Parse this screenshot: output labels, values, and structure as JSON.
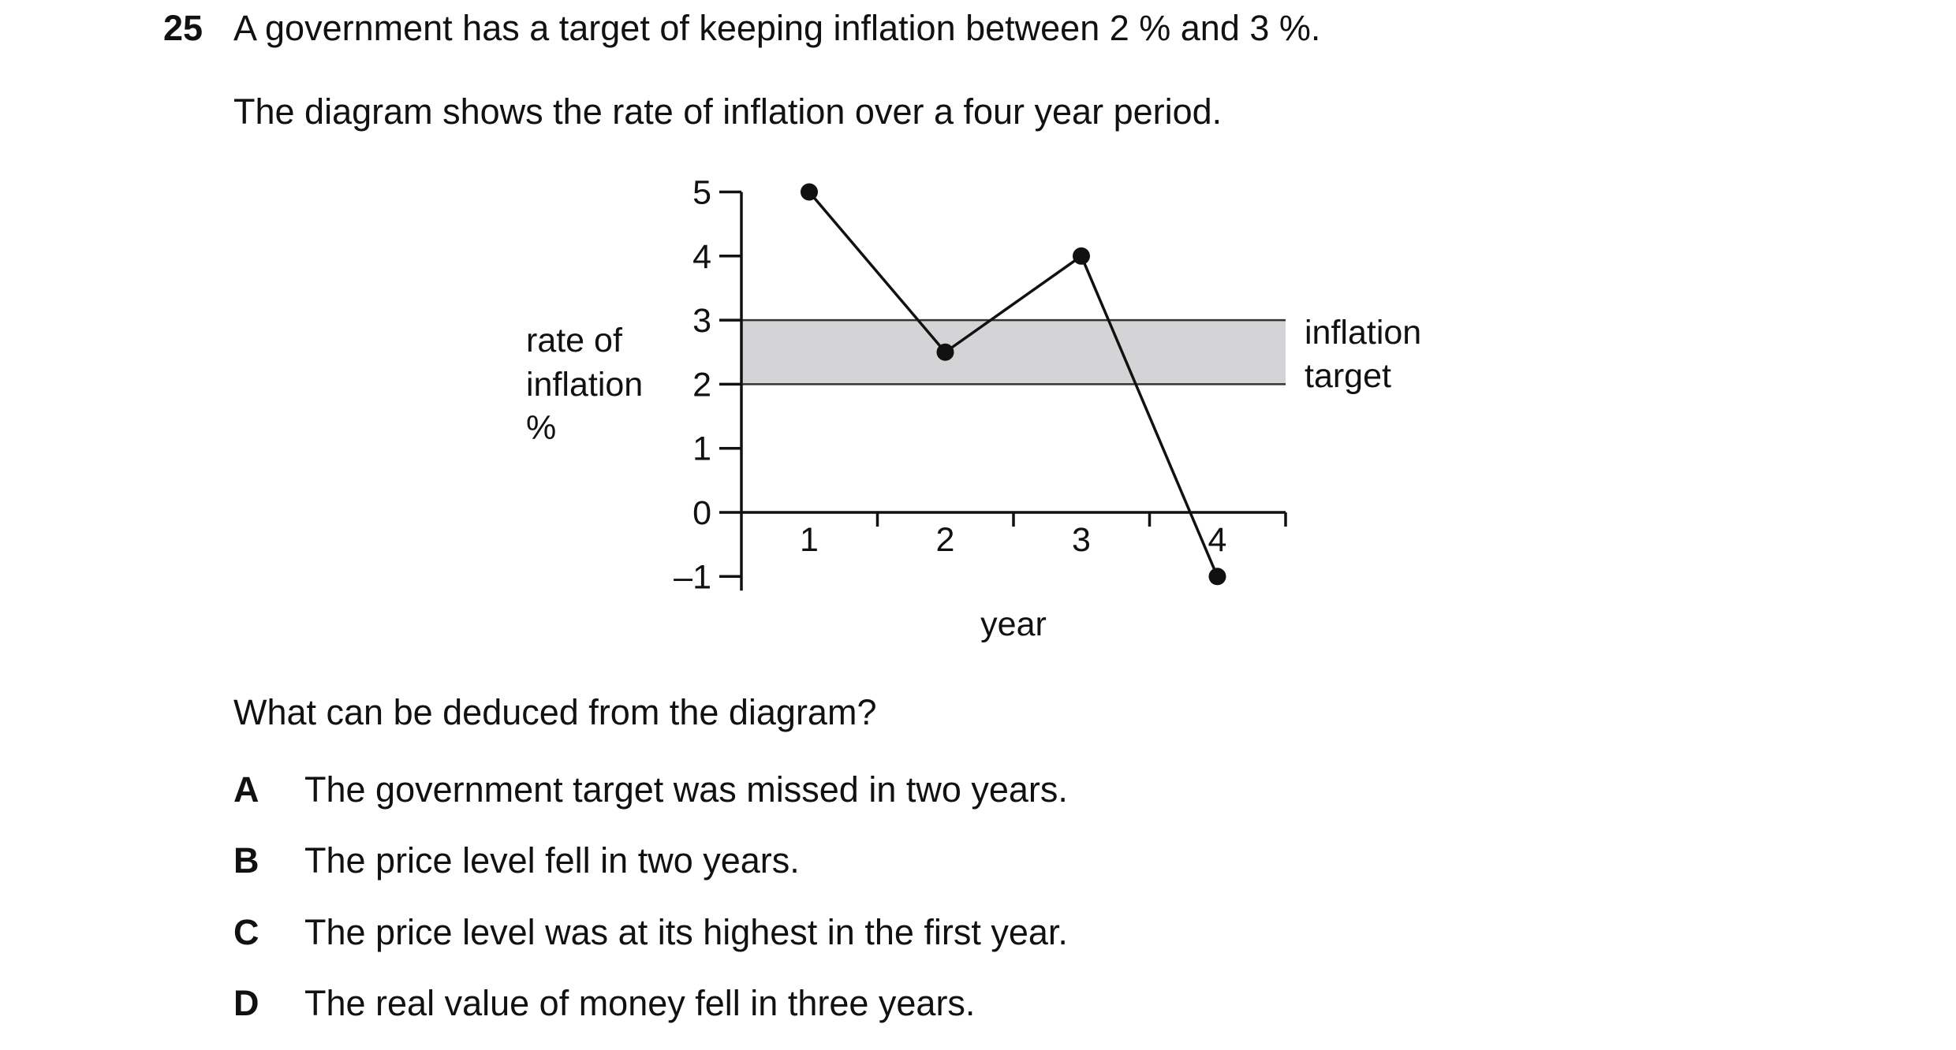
{
  "question": {
    "number": "25",
    "text": "A government has a target of keeping inflation between 2 % and 3 %.",
    "intro": "The diagram shows the rate of inflation over a four year period.",
    "prompt": "What can be deduced from the diagram?",
    "options": [
      {
        "letter": "A",
        "text": "The government target was missed in two years."
      },
      {
        "letter": "B",
        "text": "The price level fell in two years."
      },
      {
        "letter": "C",
        "text": "The price level was at its highest in the first year."
      },
      {
        "letter": "D",
        "text": "The real value of money fell in three years."
      }
    ]
  },
  "chart_data": {
    "type": "line",
    "title": "",
    "xlabel": "year",
    "ylabel_lines": [
      "rate of",
      "inflation",
      "%"
    ],
    "x_ticks": [
      "1",
      "2",
      "3",
      "4"
    ],
    "y_ticks": [
      "5",
      "4",
      "3",
      "2",
      "1",
      "0",
      "–1"
    ],
    "y_tick_values": [
      5,
      4,
      3,
      2,
      1,
      0,
      -1
    ],
    "ylim": [
      -1,
      5
    ],
    "series": [
      {
        "x": [
          1,
          2,
          3,
          4
        ],
        "values": [
          5,
          2.5,
          4,
          -1
        ]
      }
    ],
    "target_band": {
      "low": 2,
      "high": 3,
      "label_lines": [
        "inflation",
        "target"
      ],
      "color": "#d4d4d6"
    },
    "grid": false
  }
}
